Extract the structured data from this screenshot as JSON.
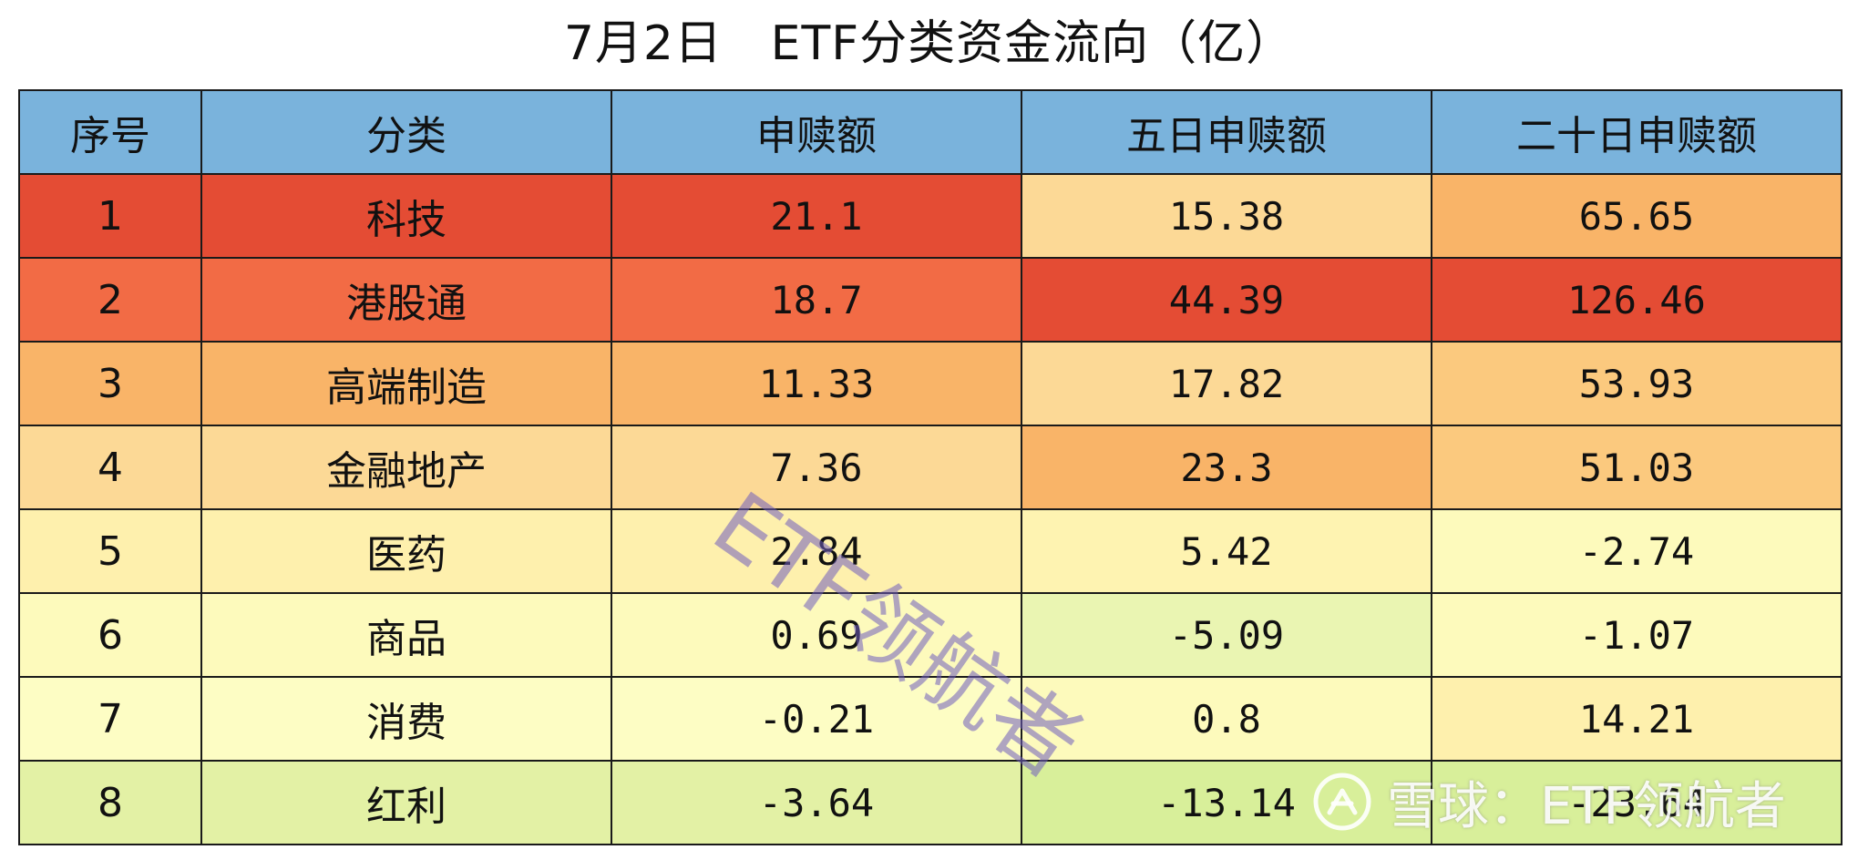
{
  "title": "7月2日   ETF分类资金流向（亿）",
  "chart_data": {
    "type": "table",
    "title": "7月2日   ETF分类资金流向（亿）",
    "columns": [
      "序号",
      "分类",
      "申赎额",
      "五日申赎额",
      "二十日申赎额"
    ],
    "rows": [
      {
        "index": "1",
        "category": "科技",
        "daily": "21.1",
        "five_day": "15.38",
        "twenty_day": "65.65"
      },
      {
        "index": "2",
        "category": "港股通",
        "daily": "18.7",
        "five_day": "44.39",
        "twenty_day": "126.46"
      },
      {
        "index": "3",
        "category": "高端制造",
        "daily": "11.33",
        "five_day": "17.82",
        "twenty_day": "53.93"
      },
      {
        "index": "4",
        "category": "金融地产",
        "daily": "7.36",
        "five_day": "23.3",
        "twenty_day": "51.03"
      },
      {
        "index": "5",
        "category": "医药",
        "daily": "2.84",
        "five_day": "5.42",
        "twenty_day": "-2.74"
      },
      {
        "index": "6",
        "category": "商品",
        "daily": "0.69",
        "five_day": "-5.09",
        "twenty_day": "-1.07"
      },
      {
        "index": "7",
        "category": "消费",
        "daily": "-0.21",
        "five_day": "0.8",
        "twenty_day": "14.21"
      },
      {
        "index": "8",
        "category": "红利",
        "daily": "-3.64",
        "five_day": "-13.14",
        "twenty_day": "-23.64"
      }
    ],
    "header_color": "#7ab3dc",
    "color_scale": {
      "type": "red-yellow-green",
      "high": "#e44c34",
      "upper": "#f26b45",
      "mid_high": "#f9b468",
      "mid": "#fcd996",
      "low_mid": "#fef3b1",
      "neutral": "#fdfdc4",
      "low": "#d8ef9a"
    }
  },
  "watermark": "ETF领航者",
  "brand": {
    "text": "雪球：ETF领航者",
    "icon": "xueqiu-logo-icon"
  }
}
